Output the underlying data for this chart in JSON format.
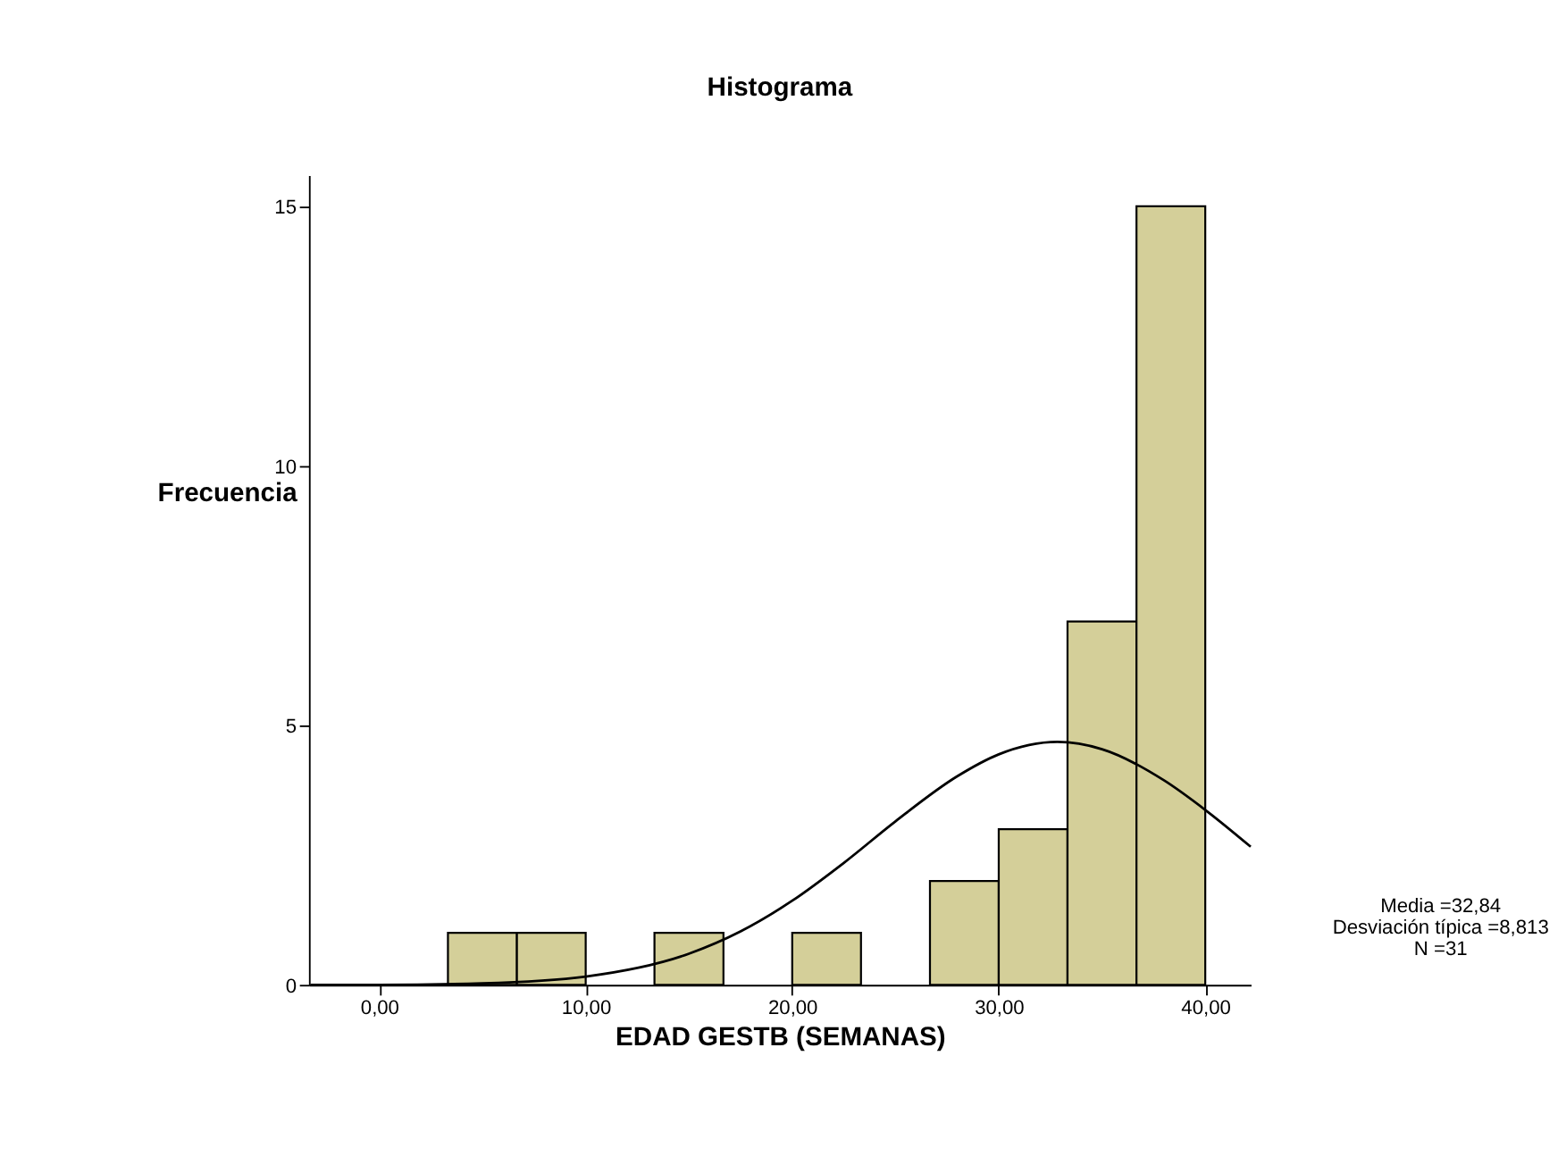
{
  "chart_data": {
    "type": "histogram",
    "title": "Histograma",
    "xlabel": "EDAD GESTB (SEMANAS)",
    "ylabel": "Frecuencia",
    "series": [
      {
        "type": "histogram",
        "bins": [
          3.33,
          6.67,
          10,
          13.33,
          16.67,
          20,
          23.33,
          26.67,
          30,
          33.33,
          36.67,
          40
        ],
        "values": [
          1,
          1,
          0,
          1,
          0,
          1,
          0,
          2,
          3,
          7,
          15
        ],
        "color": "#d4cf99"
      },
      {
        "type": "line",
        "x": [
          -3.33,
          0,
          5,
          10,
          15,
          17.5,
          20,
          22.5,
          25,
          28,
          30,
          32.84,
          35,
          38,
          40,
          42.2
        ],
        "values": [
          0.0,
          0.0,
          0.03,
          0.16,
          0.6,
          1.03,
          1.62,
          2.35,
          3.15,
          4.02,
          4.44,
          4.68,
          4.54,
          3.94,
          3.37,
          2.66
        ],
        "color": "#000000"
      }
    ],
    "xlim": [
      -3.4,
      42.2
    ],
    "xticks": [
      {
        "value": 0,
        "label": "0,00"
      },
      {
        "value": 10,
        "label": "10,00"
      },
      {
        "value": 20,
        "label": "20,00"
      },
      {
        "value": 30,
        "label": "30,00"
      },
      {
        "value": 40,
        "label": "40,00"
      }
    ],
    "ylim": [
      0,
      15.6
    ],
    "yticks": [
      0,
      5,
      10,
      15
    ],
    "grid": false,
    "annotations": [
      "Media =32,84",
      "Desviación típica =8,813",
      "N =31"
    ]
  }
}
